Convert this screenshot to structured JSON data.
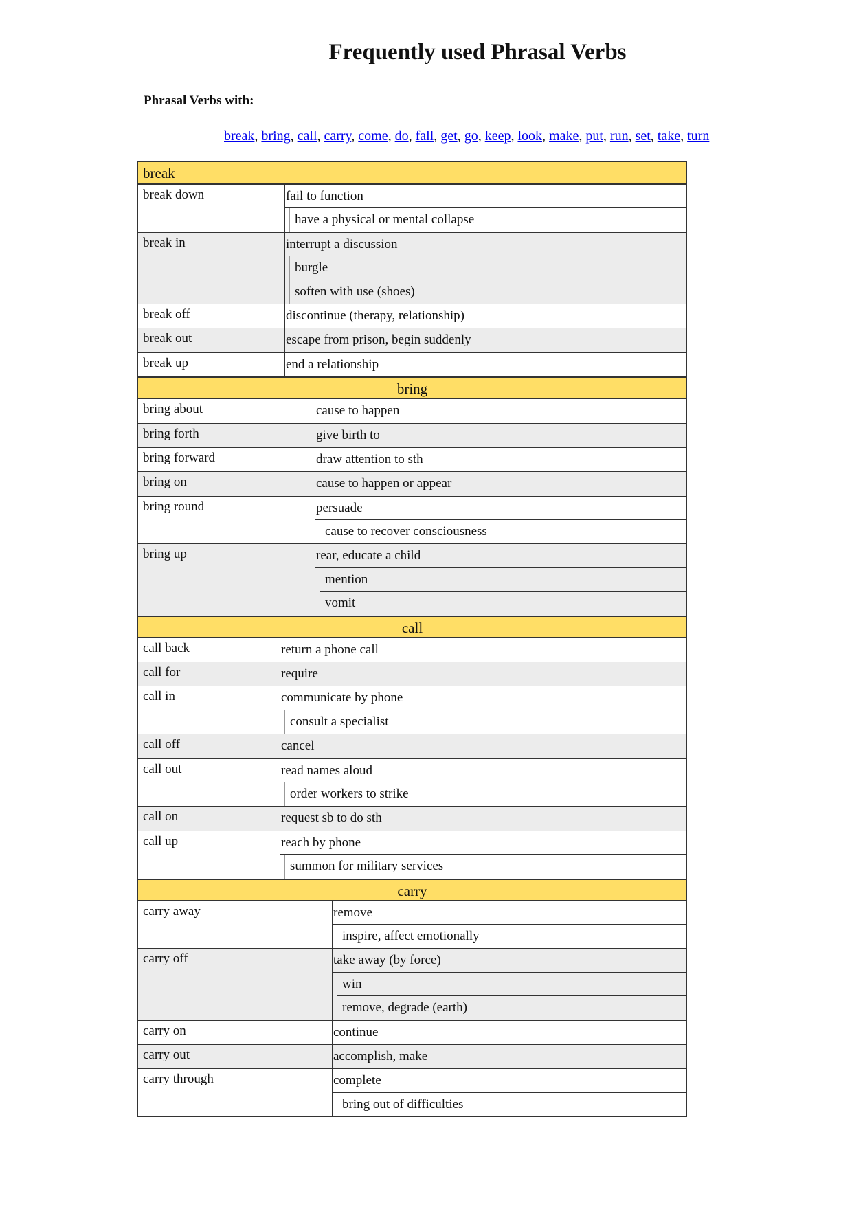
{
  "title": "Frequently used Phrasal Verbs",
  "subtitle": "Phrasal Verbs with:",
  "links": [
    "break",
    "bring",
    "call",
    "carry",
    "come",
    "do",
    "fall",
    "get",
    "go",
    "keep",
    "look",
    "make",
    "put",
    "run",
    "set",
    "take",
    "turn"
  ],
  "colors": {
    "section_header": "#ffde66",
    "alt_row": "#ececec",
    "link": "#0000ee"
  },
  "sections": [
    {
      "name": "break",
      "align": "left",
      "entries": [
        {
          "verb": "break down",
          "meanings": [
            "fail to function",
            "have a physical or mental collapse"
          ]
        },
        {
          "verb": "break in",
          "meanings": [
            "interrupt a discussion",
            "burgle",
            "soften with use (shoes)"
          ]
        },
        {
          "verb": "break off",
          "meanings": [
            "discontinue (therapy, relationship)"
          ]
        },
        {
          "verb": "break out",
          "meanings": [
            "escape from prison, begin suddenly"
          ]
        },
        {
          "verb": "break up",
          "meanings": [
            "end a relationship"
          ]
        }
      ]
    },
    {
      "name": "bring",
      "align": "center",
      "entries": [
        {
          "verb": "bring about",
          "meanings": [
            "cause to happen"
          ]
        },
        {
          "verb": "bring forth",
          "meanings": [
            "give birth to"
          ]
        },
        {
          "verb": "bring forward",
          "meanings": [
            "draw attention to sth"
          ]
        },
        {
          "verb": "bring on",
          "meanings": [
            "cause to happen or appear"
          ]
        },
        {
          "verb": "bring round",
          "meanings": [
            "persuade",
            "cause to recover consciousness"
          ]
        },
        {
          "verb": "bring up",
          "meanings": [
            "rear, educate a child",
            "mention",
            "vomit"
          ]
        }
      ]
    },
    {
      "name": "call",
      "align": "center",
      "entries": [
        {
          "verb": "call back",
          "meanings": [
            "return a phone call"
          ]
        },
        {
          "verb": "call for",
          "meanings": [
            "require"
          ]
        },
        {
          "verb": "call in",
          "meanings": [
            "communicate by phone",
            "consult a specialist"
          ]
        },
        {
          "verb": "call off",
          "meanings": [
            "cancel"
          ]
        },
        {
          "verb": "call out",
          "meanings": [
            "read names aloud",
            "order workers to strike"
          ]
        },
        {
          "verb": "call on",
          "meanings": [
            "request sb to do sth"
          ]
        },
        {
          "verb": "call up",
          "meanings": [
            "reach by phone",
            "summon for military services"
          ]
        }
      ]
    },
    {
      "name": "carry",
      "align": "center",
      "entries": [
        {
          "verb": "carry away",
          "meanings": [
            "remove",
            "inspire, affect emotionally"
          ]
        },
        {
          "verb": "carry off",
          "meanings": [
            "take away (by force)",
            "win",
            "remove, degrade (earth)"
          ]
        },
        {
          "verb": "carry on",
          "meanings": [
            "continue"
          ]
        },
        {
          "verb": "carry out",
          "meanings": [
            "accomplish, make"
          ]
        },
        {
          "verb": "carry through",
          "meanings": [
            "complete",
            "bring out of difficulties"
          ]
        }
      ]
    }
  ]
}
